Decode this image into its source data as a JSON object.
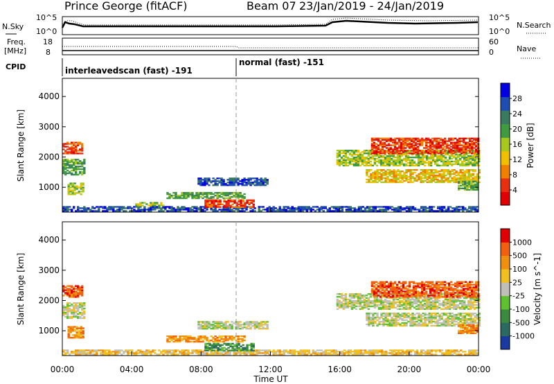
{
  "header": {
    "station": "Prince George (fitACF)",
    "beam": "Beam 07",
    "daterange": "23/Jan/2019 - 24/Jan/2019"
  },
  "side_labels": {
    "nsky": "N.Sky",
    "nsearch": "N.Search",
    "freq_line1": "Freq.",
    "freq_line2": "[MHz]",
    "nave": "Nave",
    "cpid": "CPID"
  },
  "count_panel": {
    "left_ticks": [
      "10^5",
      "10^0"
    ],
    "right_ticks": [
      "10^5",
      "10^0"
    ]
  },
  "freq_panel": {
    "left_ticks": [
      "18",
      "8"
    ],
    "right_ticks": [
      "60",
      "0"
    ]
  },
  "cpid_panel": {
    "segments": [
      {
        "label": "interleavedscan (fast) -191",
        "start_h": 0,
        "end_h": 10
      },
      {
        "label": "normal (fast) -151",
        "start_h": 10,
        "end_h": 24
      }
    ]
  },
  "colors": {
    "power": [
      "#0000e0",
      "#1e4fb0",
      "#3a7a60",
      "#3f9a40",
      "#a8c820",
      "#f0c000",
      "#f08000",
      "#e83010",
      "#e00000"
    ],
    "velocity": [
      "#1a3aa0",
      "#2a6a60",
      "#3a8a40",
      "#5fc030",
      "#c0c0b8",
      "#f0c020",
      "#f09010",
      "#f06010",
      "#e00000"
    ]
  },
  "chart_data": [
    {
      "type": "heatmap",
      "name": "power",
      "ylabel": "Slant Range [km]",
      "xlim": [
        0,
        24
      ],
      "ylim": [
        180,
        4600
      ],
      "yticks": [
        1000,
        2000,
        3000,
        4000
      ],
      "x_tick_labels": [
        "00:00",
        "04:00",
        "08:00",
        "12:00",
        "16:00",
        "20:00",
        "00:00"
      ],
      "colorbar": {
        "label": "Power [dB]",
        "ticks": [
          "4",
          "8",
          "12",
          "16",
          "20",
          "24",
          "28"
        ]
      },
      "regions": [
        {
          "t0": 0.0,
          "t1": 1.2,
          "r0": 2100,
          "r1": 2500,
          "level": 7
        },
        {
          "t0": 0.0,
          "t1": 1.3,
          "r0": 1400,
          "r1": 1900,
          "level": 3
        },
        {
          "t0": 0.3,
          "t1": 1.2,
          "r0": 750,
          "r1": 1150,
          "level": 4
        },
        {
          "t0": 0.0,
          "t1": 24.0,
          "r0": 200,
          "r1": 380,
          "level": 1
        },
        {
          "t0": 4.2,
          "t1": 5.8,
          "r0": 380,
          "r1": 480,
          "level": 4
        },
        {
          "t0": 6.0,
          "t1": 10.5,
          "r0": 620,
          "r1": 820,
          "level": 3
        },
        {
          "t0": 7.8,
          "t1": 11.8,
          "r0": 1050,
          "r1": 1300,
          "level": 1
        },
        {
          "t0": 8.2,
          "t1": 11.0,
          "r0": 330,
          "r1": 560,
          "level": 7
        },
        {
          "t0": 15.8,
          "t1": 24.0,
          "r0": 1700,
          "r1": 2200,
          "level": 4
        },
        {
          "t0": 17.5,
          "t1": 24.0,
          "r0": 1150,
          "r1": 1600,
          "level": 5
        },
        {
          "t0": 17.8,
          "t1": 24.0,
          "r0": 2100,
          "r1": 2600,
          "level": 7
        },
        {
          "t0": 22.8,
          "t1": 24.0,
          "r0": 900,
          "r1": 1200,
          "level": 3
        }
      ]
    },
    {
      "type": "heatmap",
      "name": "velocity",
      "ylabel": "Slant Range [km]",
      "xlabel": "Time UT",
      "xlim": [
        0,
        24
      ],
      "ylim": [
        180,
        4600
      ],
      "yticks": [
        1000,
        2000,
        3000,
        4000
      ],
      "x_tick_labels": [
        "00:00",
        "04:00",
        "08:00",
        "12:00",
        "16:00",
        "20:00",
        "00:00"
      ],
      "colorbar": {
        "label": "Velocity [m s^-1]",
        "ticks": [
          "1000",
          "500",
          "100",
          "25",
          "-25",
          "-100",
          "-500",
          "-1000"
        ]
      },
      "regions": [
        {
          "t0": 0.0,
          "t1": 1.2,
          "r0": 2100,
          "r1": 2500,
          "level": 7
        },
        {
          "t0": 0.0,
          "t1": 1.3,
          "r0": 1400,
          "r1": 1900,
          "level": 4
        },
        {
          "t0": 0.3,
          "t1": 1.2,
          "r0": 750,
          "r1": 1150,
          "level": 6
        },
        {
          "t0": 0.0,
          "t1": 24.0,
          "r0": 200,
          "r1": 380,
          "level": 5
        },
        {
          "t0": 6.0,
          "t1": 10.5,
          "r0": 620,
          "r1": 820,
          "level": 6
        },
        {
          "t0": 7.8,
          "t1": 11.8,
          "r0": 1050,
          "r1": 1300,
          "level": 4
        },
        {
          "t0": 8.2,
          "t1": 11.0,
          "r0": 330,
          "r1": 560,
          "level": 2
        },
        {
          "t0": 15.8,
          "t1": 24.0,
          "r0": 1700,
          "r1": 2200,
          "level": 4
        },
        {
          "t0": 17.5,
          "t1": 24.0,
          "r0": 1150,
          "r1": 1600,
          "level": 4
        },
        {
          "t0": 17.8,
          "t1": 24.0,
          "r0": 2100,
          "r1": 2600,
          "level": 7
        },
        {
          "t0": 22.8,
          "t1": 24.0,
          "r0": 900,
          "r1": 1200,
          "level": 6
        }
      ]
    }
  ]
}
